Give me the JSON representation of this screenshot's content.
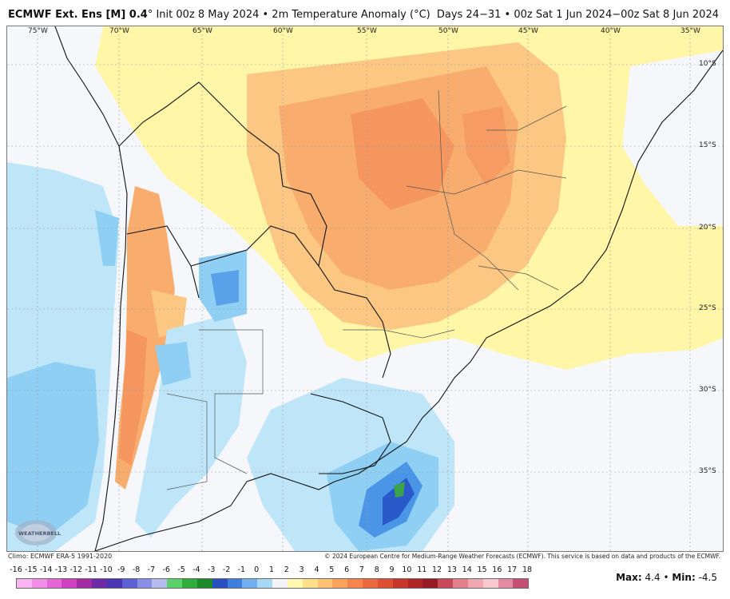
{
  "header": {
    "model": "ECMWF Ext. Ens [M] 0.4",
    "degree": "°",
    "init": " Init 00z 8 May 2024 • 2m Temperature Anomaly (",
    "unit": "°C",
    "close": ")",
    "valid": "Days 24−31 • 00z Sat 1 Jun 2024−00z Sat 8 Jun 2024"
  },
  "map": {
    "lon_labels": [
      "75°W",
      "70°W",
      "65°W",
      "60°W",
      "55°W",
      "50°W",
      "45°W",
      "40°W",
      "35°W"
    ],
    "lat_labels": [
      "10°S",
      "15°S",
      "20°S",
      "25°S",
      "30°S",
      "35°S"
    ],
    "logo_text": "WEATHERBELL"
  },
  "footer": {
    "climo": "Climo: ECMWF ERA-5 1991-2020",
    "copyright": "© 2024 European Centre for Medium-Range Weather Forecasts (ECMWF). This service is based on data and products of the ECMWF."
  },
  "colorbar": {
    "labels": [
      "-16",
      "-15",
      "-14",
      "-13",
      "-12",
      "-11",
      "-10",
      "-9",
      "-8",
      "-7",
      "-6",
      "-5",
      "-4",
      "-3",
      "-2",
      "-1",
      "0",
      "1",
      "2",
      "3",
      "4",
      "5",
      "6",
      "7",
      "8",
      "9",
      "10",
      "11",
      "12",
      "13",
      "14",
      "15",
      "16",
      "17",
      "18"
    ],
    "colors": [
      "#f9b4f2",
      "#f28ee6",
      "#e566d6",
      "#cf40c2",
      "#a52ba6",
      "#6c2aa6",
      "#4a36b5",
      "#5f5fd6",
      "#8a8ee4",
      "#b7bcef",
      "#5ad16a",
      "#2fae3c",
      "#1b8a2a",
      "#2a4fc0",
      "#3f7fe0",
      "#72aef0",
      "#a9d8f7",
      "#f4f4f8",
      "#fff9b0",
      "#ffe08a",
      "#ffc272",
      "#ffa35a",
      "#f8844c",
      "#ee6a3e",
      "#de4e33",
      "#c8352a",
      "#b02424",
      "#951c25",
      "#c94a5a",
      "#e47f8c",
      "#f1a7b0",
      "#f7c8cd",
      "#e58aa0",
      "#c84f74"
    ],
    "max_label": "Max:",
    "max_value": "4.4",
    "separator": "•",
    "min_label": "Min:",
    "min_value": "-4.5"
  },
  "colors": {
    "warm_light": "#fff6a8",
    "warm_mid": "#fcc783",
    "warm_strong": "#f8ad6e",
    "warm_peak": "#f48f5b",
    "neutral": "#f6f7fb",
    "cool_light": "#bfe6f8",
    "cool_mid": "#8fcff3",
    "cool_strong": "#4b95e6",
    "cool_deep": "#2a59c9",
    "cool_min": "#3aa44a",
    "border": "#111111",
    "state_border": "#4d4d4d"
  }
}
